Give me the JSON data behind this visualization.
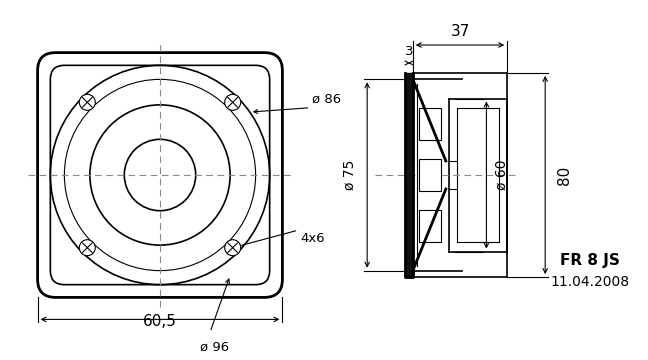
{
  "bg_color": "#ffffff",
  "line_color": "#000000",
  "title": "FR 8 JS",
  "date": "11.04.2008",
  "dims": {
    "d60_5": "60,5",
    "d86": "ø 86",
    "d96": "ø 96",
    "d4x6": "4x6",
    "d37": "37",
    "d3": "3",
    "d75": "ø 75",
    "d60": "ø 60",
    "d80": "80"
  }
}
